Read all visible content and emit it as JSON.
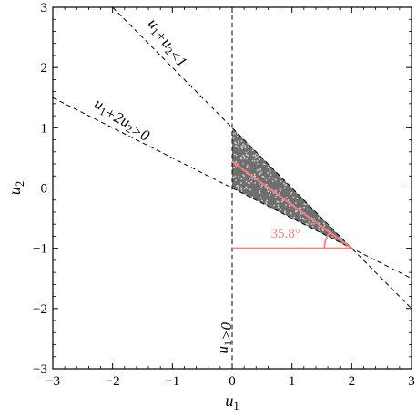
{
  "chart_data": {
    "type": "scatter",
    "xlabel": "u1",
    "ylabel": "u2",
    "xlim": [
      -3,
      3
    ],
    "ylim": [
      -3,
      3
    ],
    "x_ticks": [
      -3,
      -2,
      -1,
      0,
      1,
      2,
      3
    ],
    "y_ticks": [
      -3,
      -2,
      -1,
      0,
      1,
      2,
      3
    ],
    "x_tick_labels": [
      "−3",
      "−2",
      "−1",
      "0",
      "1",
      "2",
      "3"
    ],
    "y_tick_labels": [
      "−3",
      "−2",
      "−1",
      "0",
      "1",
      "2",
      "3"
    ],
    "feasible_region": {
      "vertices": [
        [
          0,
          1
        ],
        [
          0,
          0
        ],
        [
          2,
          -1
        ]
      ],
      "fill_color": "#6e6e6e"
    },
    "constraints": [
      {
        "label": "u1+u2<1",
        "line": "u1 + u2 = 1"
      },
      {
        "label": "u1+2u2>0",
        "line": "u1 + 2*u2 = 0"
      },
      {
        "label": "u1>0",
        "line": "u1 = 0"
      }
    ],
    "fitted_line": {
      "x": [
        0,
        2
      ],
      "y": [
        0.44,
        -1
      ],
      "color": "#f08080"
    },
    "horizontal_reference": {
      "x": [
        0,
        2
      ],
      "y": [
        -1,
        -1
      ],
      "color": "#f08080"
    },
    "angle_annotation": {
      "text": "35.8°",
      "degrees": 35.8,
      "vertex": [
        2,
        -1
      ],
      "color": "#f08080"
    },
    "grid": false
  }
}
